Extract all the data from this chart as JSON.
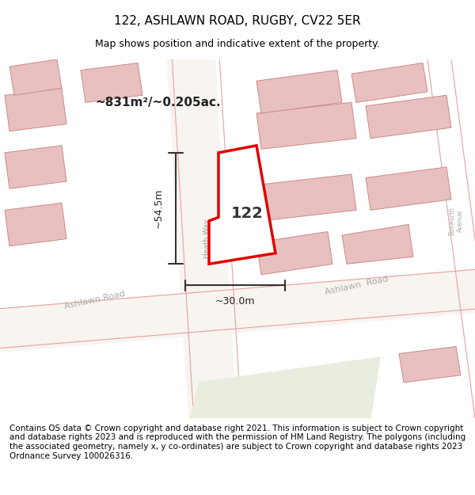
{
  "title": "122, ASHLAWN ROAD, RUGBY, CV22 5ER",
  "subtitle": "Map shows position and indicative extent of the property.",
  "footer": "Contains OS data © Crown copyright and database right 2021. This information is subject to Crown copyright and database rights 2023 and is reproduced with the permission of HM Land Registry. The polygons (including the associated geometry, namely x, y co-ordinates) are subject to Crown copyright and database rights 2023 Ordnance Survey 100026316.",
  "bg_color": "#f5f0eb",
  "map_bg": "#f5f0eb",
  "title_fontsize": 11,
  "subtitle_fontsize": 9,
  "footer_fontsize": 7.5,
  "area_text": "~831m²/~0.205ac.",
  "width_text": "~30.0m",
  "height_text": "~54.5m",
  "house_number": "122",
  "red_color": "#e00000",
  "road_color": "#e8c8c8",
  "building_fill": "#e8c8c8",
  "building_fill2": "#d0c0b0",
  "road_bg": "#ffffff",
  "street_text_color": "#888888",
  "green_area": "#e8ede0"
}
